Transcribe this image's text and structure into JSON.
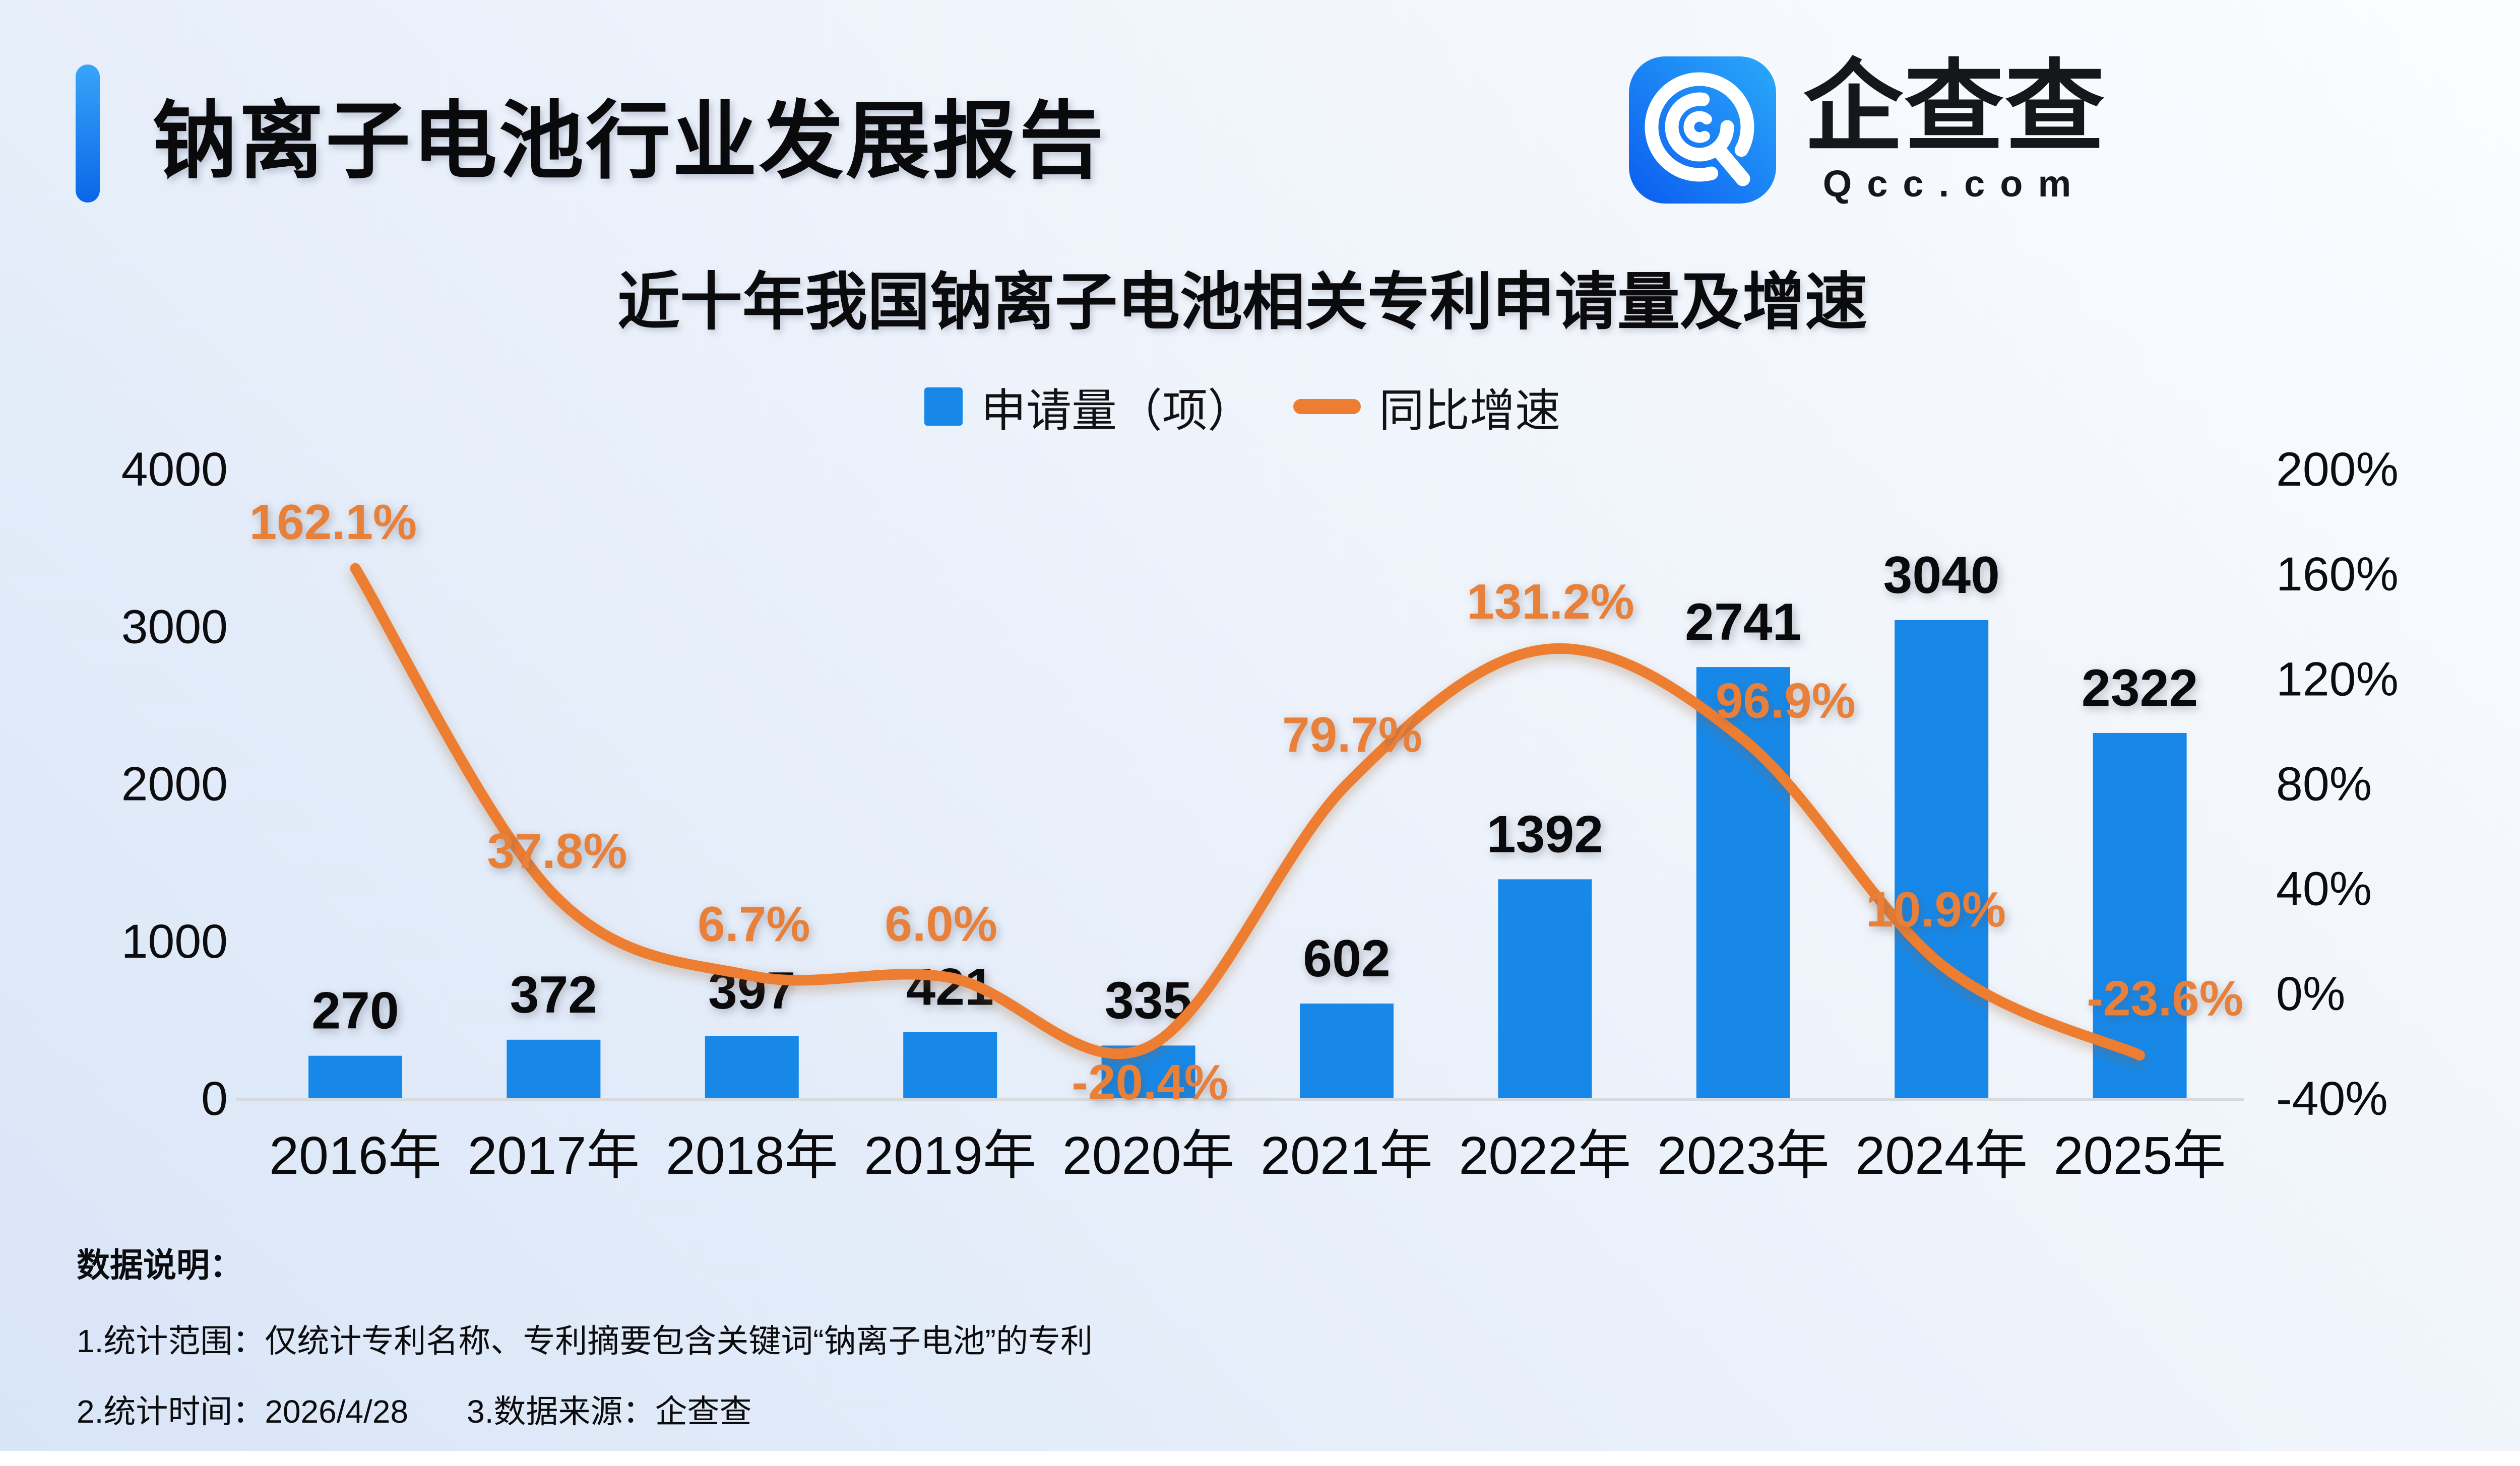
{
  "header": {
    "title": "钠离子电池行业发展报告"
  },
  "logo": {
    "brand_name": "企查查",
    "domain": "Qcc.com",
    "icon_gradient_left": "#0b5df0",
    "icon_gradient_right": "#2ba9fa"
  },
  "chart_data": {
    "type": "bar",
    "title": "近十年我国钠离子电池相关专利申请量及增速",
    "categories": [
      "2016年",
      "2017年",
      "2018年",
      "2019年",
      "2020年",
      "2021年",
      "2022年",
      "2023年",
      "2024年",
      "2025年"
    ],
    "series": [
      {
        "name": "申请量（项）",
        "type": "bar",
        "color": "#1788e8",
        "values": [
          270,
          372,
          397,
          421,
          335,
          602,
          1392,
          2741,
          3040,
          2322
        ]
      },
      {
        "name": "同比增速",
        "type": "line",
        "color": "#ed7d31",
        "label_color": "#e8803a",
        "values_pct": [
          162.1,
          37.8,
          6.7,
          6.0,
          -20.4,
          79.7,
          131.2,
          96.9,
          10.9,
          -23.6
        ],
        "labels": [
          "162.1%",
          "37.8%",
          "6.7%",
          "6.0%",
          "-20.4%",
          "79.7%",
          "131.2%",
          "96.9%",
          "10.9%",
          "-23.6%"
        ]
      }
    ],
    "left_axis": {
      "ticks": [
        "0",
        "1000",
        "2000",
        "3000",
        "4000"
      ],
      "min": 0,
      "max": 4000
    },
    "right_axis": {
      "ticks": [
        "-40%",
        "0%",
        "40%",
        "80%",
        "120%",
        "160%",
        "200%"
      ],
      "min": -40,
      "max": 200
    },
    "grid": false,
    "legend_position": "top"
  },
  "footer": {
    "heading": "数据说明：",
    "line1": "1.统计范围：仅统计专利名称、专利摘要包含关键词“钠离子电池”的专利",
    "line2": "2.统计时间：2026/4/28",
    "line3": "3.数据来源：企查查"
  }
}
